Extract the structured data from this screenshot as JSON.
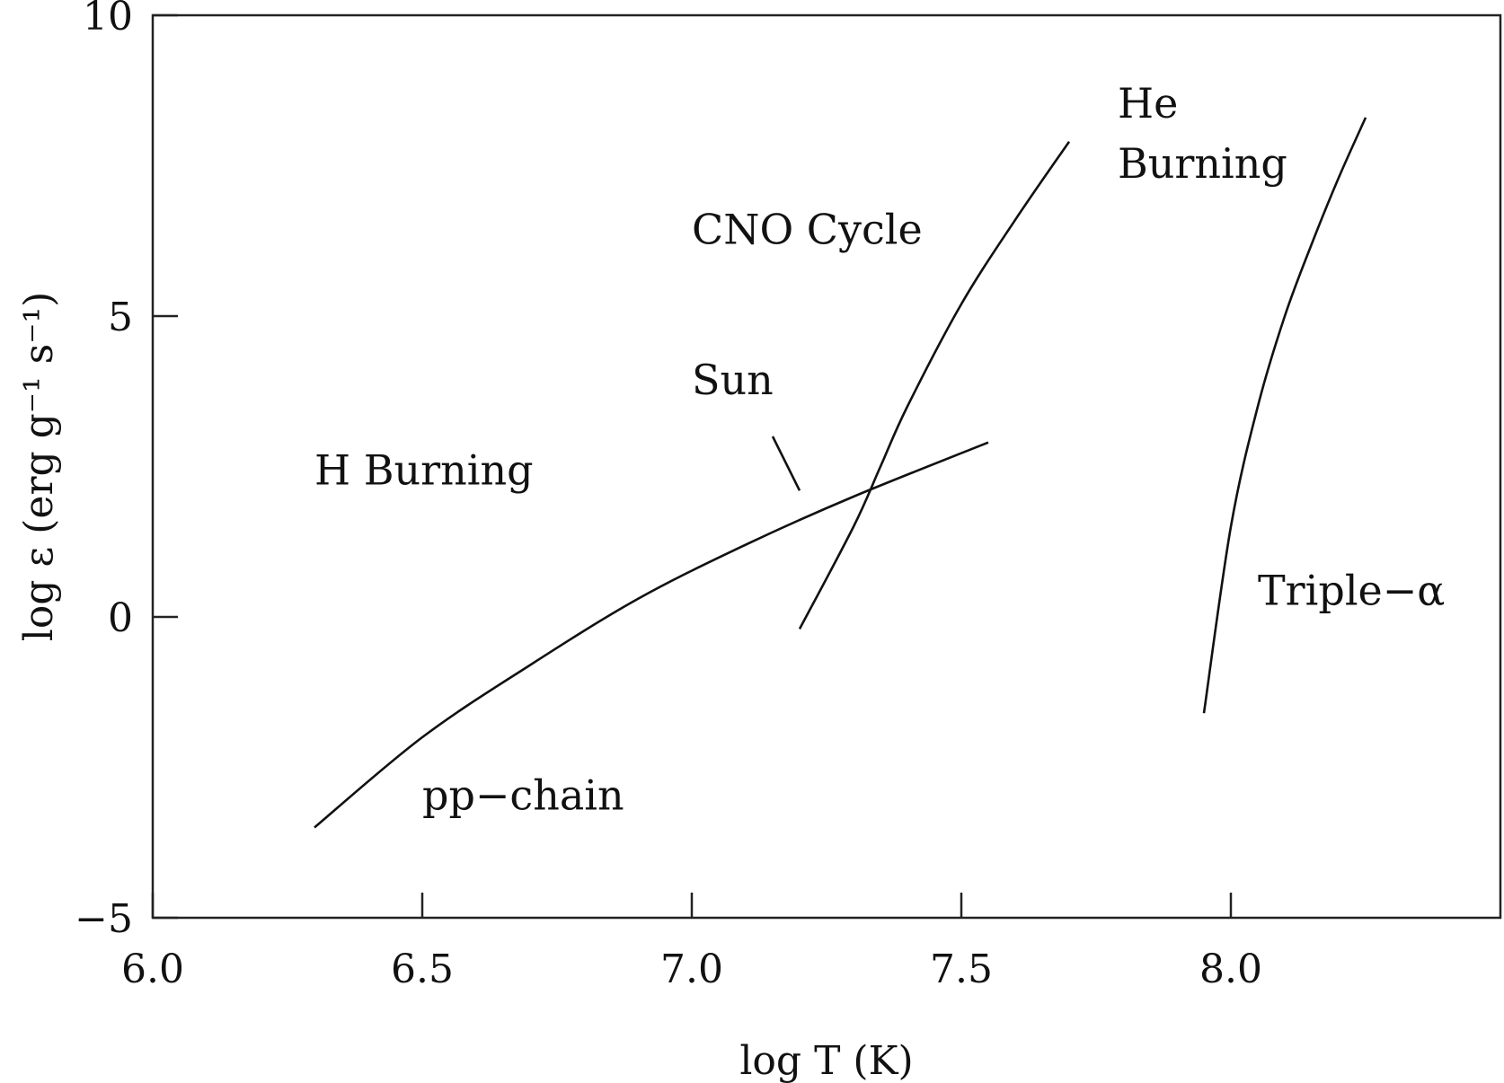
{
  "chart_data": {
    "type": "line",
    "title": "",
    "xlabel": "log T (K)",
    "ylabel": "log ε (erg g⁻¹ s⁻¹)",
    "xlim": [
      6.0,
      8.5
    ],
    "ylim": [
      -5,
      10
    ],
    "xticks": [
      {
        "value": 6.0,
        "label": "6.0"
      },
      {
        "value": 6.5,
        "label": "6.5"
      },
      {
        "value": 7.0,
        "label": "7.0"
      },
      {
        "value": 7.5,
        "label": "7.5"
      },
      {
        "value": 8.0,
        "label": "8.0"
      }
    ],
    "yticks": [
      {
        "value": 10,
        "label": "10"
      },
      {
        "value": 5,
        "label": "5"
      },
      {
        "value": 0,
        "label": "0"
      },
      {
        "value": -5,
        "label": "−5"
      }
    ],
    "grid": false,
    "series": [
      {
        "name": "pp−chain",
        "x": [
          6.3,
          6.5,
          6.7,
          6.9,
          7.1,
          7.3,
          7.55
        ],
        "y": [
          -3.5,
          -2.0,
          -0.8,
          0.3,
          1.2,
          2.0,
          2.9
        ]
      },
      {
        "name": "CNO Cycle",
        "x": [
          7.2,
          7.3,
          7.35,
          7.4,
          7.5,
          7.6,
          7.7
        ],
        "y": [
          -0.2,
          1.5,
          2.5,
          3.5,
          5.2,
          6.6,
          7.9
        ]
      },
      {
        "name": "Triple−α",
        "x": [
          7.95,
          8.0,
          8.05,
          8.1,
          8.15,
          8.2,
          8.25
        ],
        "y": [
          -1.6,
          1.5,
          3.5,
          5.0,
          6.2,
          7.3,
          8.3
        ]
      }
    ],
    "annotations": [
      {
        "id": "he-burning-1",
        "text": "He",
        "x": 7.79,
        "y": 8.3
      },
      {
        "id": "he-burning-2",
        "text": "Burning",
        "x": 7.79,
        "y": 7.3
      },
      {
        "id": "cno-cycle",
        "text": "CNO  Cycle",
        "x": 7.0,
        "y": 6.2
      },
      {
        "id": "sun",
        "text": "Sun",
        "x": 7.0,
        "y": 3.7
      },
      {
        "id": "h-burning",
        "text": "H Burning",
        "x": 6.3,
        "y": 2.2
      },
      {
        "id": "pp-chain",
        "text": "pp−chain",
        "x": 6.5,
        "y": -3.2
      },
      {
        "id": "triple-alpha",
        "text": "Triple−α",
        "x": 8.05,
        "y": 0.2
      }
    ],
    "sun_pointer": {
      "x": [
        7.15,
        7.2
      ],
      "y": [
        3.0,
        2.1
      ]
    }
  }
}
